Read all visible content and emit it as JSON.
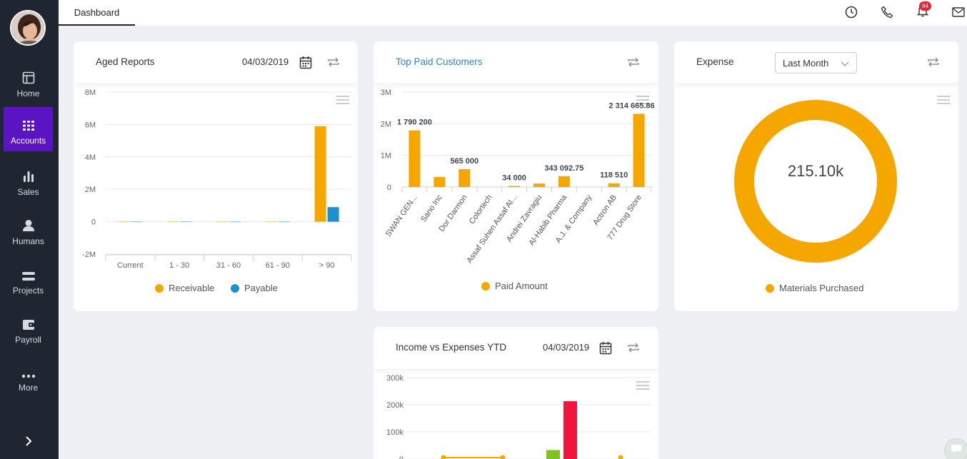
{
  "sidebar": {
    "items": [
      {
        "label": "Home",
        "icon": "home-icon"
      },
      {
        "label": "Accounts",
        "icon": "grid-icon",
        "active": true
      },
      {
        "label": "Sales",
        "icon": "bar-chart-icon"
      },
      {
        "label": "Humans",
        "icon": "person-icon"
      },
      {
        "label": "Projects",
        "icon": "projects-icon"
      },
      {
        "label": "Payroll",
        "icon": "wallet-icon"
      },
      {
        "label": "More",
        "icon": "more-icon"
      }
    ],
    "accent": "#5b14c4",
    "background": "#1f2531"
  },
  "topbar": {
    "tab_label": "Dashboard",
    "notification_count": "84",
    "icons": [
      "clock-icon",
      "phone-icon",
      "bell-icon",
      "mail-icon"
    ]
  },
  "aged_reports": {
    "title": "Aged Reports",
    "date": "04/03/2019",
    "chart_data": {
      "type": "bar",
      "categories": [
        "Current",
        "1 - 30",
        "31 - 60",
        "61 - 90",
        "> 90"
      ],
      "series": [
        {
          "name": "Receivable",
          "color": "#f5a700",
          "values": [
            0,
            0,
            0,
            0,
            5900000
          ]
        },
        {
          "name": "Payable",
          "color": "#1e8fd0",
          "values": [
            0,
            0,
            0,
            0,
            900000
          ]
        }
      ],
      "y_ticks": [
        "8M",
        "6M",
        "4M",
        "2M",
        "0",
        "-2M"
      ],
      "ylim": [
        -2000000,
        8000000
      ],
      "legend": "bottom"
    }
  },
  "top_paid": {
    "title": "Top Paid Customers",
    "chart_data": {
      "type": "bar",
      "categories": [
        "SWAN GEN...",
        "Sano Inc",
        "Dor Darmon",
        "Colortech",
        "Assaf Suhen Assaf Al...",
        "Andrei Zavragiu",
        "Al-Habib Pharma",
        "A.J. & Company",
        "Actron AB",
        "777 Drug Store"
      ],
      "series": [
        {
          "name": "Paid Amount",
          "color": "#f5a700",
          "values": [
            1790200,
            320000,
            565000,
            0,
            34000,
            110000,
            343092.75,
            0,
            118510,
            2314665.86
          ]
        }
      ],
      "data_labels": [
        "1 790 200",
        "",
        "565 000",
        "",
        "34 000",
        "",
        "343 092.75",
        "",
        "118 510",
        "2 314 665.86"
      ],
      "y_ticks": [
        "3M",
        "2M",
        "1M",
        "0"
      ],
      "ylim": [
        0,
        3000000
      ],
      "legend": "bottom"
    }
  },
  "expense": {
    "title": "Expense",
    "period": "Last Month",
    "chart_data": {
      "type": "pie",
      "center_label": "215.10k",
      "series": [
        {
          "name": "Materials Purchased",
          "color": "#f5a700",
          "values": [
            215100
          ]
        }
      ],
      "legend": "bottom"
    }
  },
  "income_vs_expenses": {
    "title": "Income vs Expenses YTD",
    "date": "04/03/2019",
    "chart_data": {
      "type": "bar",
      "y_ticks": [
        "300k",
        "200k",
        "100k",
        "0"
      ],
      "ylim": [
        0,
        300000
      ],
      "bars": [
        {
          "color": "#7dc21e",
          "value": 33000
        },
        {
          "color": "#f0153c",
          "value": 213000
        }
      ],
      "line": {
        "color": "#f5a700",
        "values": [
          0,
          0,
          0
        ]
      }
    }
  }
}
